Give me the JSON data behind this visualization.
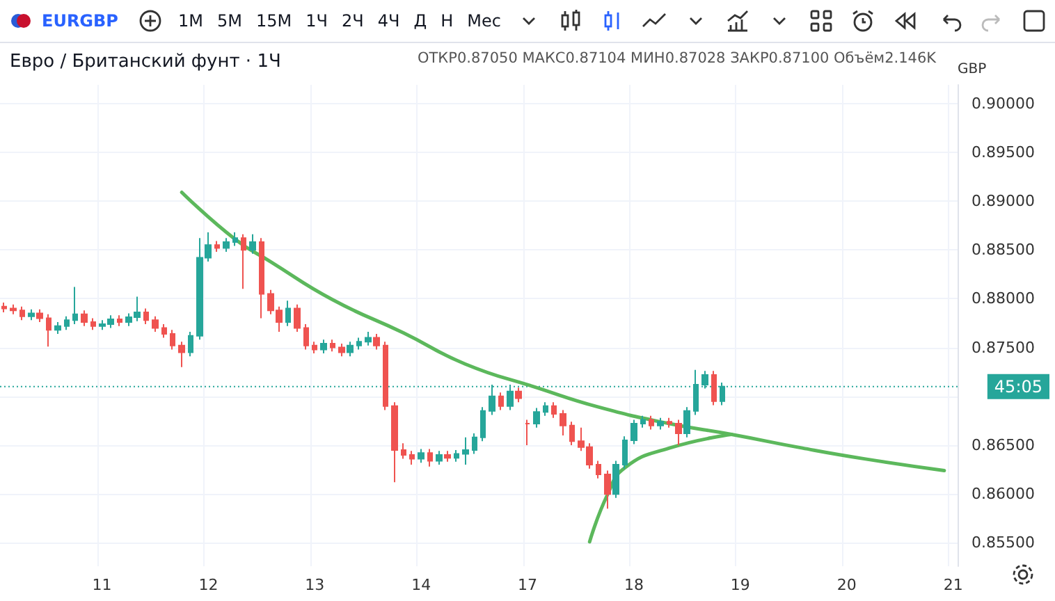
{
  "chart_data": {
    "type": "candlestick",
    "title": "Евро / Британский фунт · 1Ч",
    "ylabel": "GBP",
    "annotations": [
      "EURGBP",
      "1М",
      "5М",
      "15М",
      "1Ч",
      "2Ч",
      "4Ч",
      "Д",
      "Н",
      "Мес",
      "ОТКР0.87050 МАКС0.87104 МИН0.87028 ЗАКР0.87100 Объём2.146K",
      "45:05"
    ],
    "categories": [
      null,
      null,
      null,
      null,
      null,
      null,
      null,
      null,
      null,
      null,
      null,
      "11",
      null,
      null,
      null,
      null,
      null,
      null,
      null,
      null,
      null,
      null,
      null,
      "12",
      null,
      null,
      null,
      null,
      null,
      null,
      null,
      null,
      null,
      null,
      null,
      "13",
      null,
      null,
      null,
      null,
      null,
      null,
      null,
      null,
      null,
      null,
      null,
      "14",
      null,
      null,
      null,
      null,
      null,
      null,
      null,
      null,
      null,
      null,
      null,
      "17",
      null,
      null,
      null,
      null,
      null,
      null,
      null,
      null,
      null,
      null,
      null,
      "18",
      null,
      null,
      null,
      null,
      null,
      null,
      null,
      null,
      null,
      null,
      null,
      "19",
      null,
      null,
      null,
      null,
      null,
      null,
      null,
      null,
      null,
      null,
      null,
      "20",
      null,
      null,
      null,
      null,
      null,
      null,
      null,
      null,
      null,
      null,
      null,
      "21"
    ],
    "ohlc": [
      [
        0.8792,
        0.8796,
        0.8786,
        0.879
      ],
      [
        0.879,
        0.8794,
        0.8784,
        0.8788
      ],
      [
        0.8788,
        0.8792,
        0.8778,
        0.8782
      ],
      [
        0.8782,
        0.8789,
        0.8778,
        0.8785
      ],
      [
        0.8785,
        0.8789,
        0.8776,
        0.878
      ],
      [
        0.878,
        0.8784,
        0.8751,
        0.8768
      ],
      [
        0.8768,
        0.8776,
        0.8764,
        0.8772
      ],
      [
        0.8772,
        0.8782,
        0.8768,
        0.8778
      ],
      [
        0.8778,
        0.8812,
        0.8774,
        0.8784
      ],
      [
        0.8784,
        0.8788,
        0.8772,
        0.8776
      ],
      [
        0.8776,
        0.878,
        0.8768,
        0.8772
      ],
      [
        0.8772,
        0.8778,
        0.8768,
        0.8774
      ],
      [
        0.8774,
        0.8783,
        0.877,
        0.8779
      ],
      [
        0.8779,
        0.8783,
        0.8772,
        0.8776
      ],
      [
        0.8776,
        0.8785,
        0.8772,
        0.8781
      ],
      [
        0.8781,
        0.8802,
        0.8777,
        0.8786
      ],
      [
        0.8786,
        0.879,
        0.8774,
        0.8778
      ],
      [
        0.8778,
        0.8782,
        0.8766,
        0.877
      ],
      [
        0.877,
        0.8774,
        0.876,
        0.8764
      ],
      [
        0.8764,
        0.8768,
        0.8748,
        0.8752
      ],
      [
        0.8752,
        0.8756,
        0.873,
        0.8745
      ],
      [
        0.8745,
        0.8766,
        0.8741,
        0.8762
      ],
      [
        0.8762,
        0.8862,
        0.8758,
        0.8842
      ],
      [
        0.8842,
        0.8868,
        0.8838,
        0.8855
      ],
      [
        0.8855,
        0.8859,
        0.8848,
        0.8852
      ],
      [
        0.8852,
        0.8862,
        0.8848,
        0.8858
      ],
      [
        0.8858,
        0.8868,
        0.8854,
        0.8862
      ],
      [
        0.8862,
        0.8866,
        0.881,
        0.885
      ],
      [
        0.885,
        0.8866,
        0.8846,
        0.8858
      ],
      [
        0.8858,
        0.8862,
        0.878,
        0.8805
      ],
      [
        0.8805,
        0.8809,
        0.8784,
        0.8788
      ],
      [
        0.8788,
        0.8792,
        0.8766,
        0.8776
      ],
      [
        0.8776,
        0.8798,
        0.8772,
        0.879
      ],
      [
        0.879,
        0.8794,
        0.8766,
        0.877
      ],
      [
        0.877,
        0.8774,
        0.8748,
        0.8752
      ],
      [
        0.8752,
        0.8756,
        0.8744,
        0.8748
      ],
      [
        0.8748,
        0.8758,
        0.8744,
        0.8754
      ],
      [
        0.8754,
        0.8758,
        0.8746,
        0.875
      ],
      [
        0.875,
        0.8754,
        0.8741,
        0.8745
      ],
      [
        0.8745,
        0.8756,
        0.8741,
        0.8752
      ],
      [
        0.8752,
        0.876,
        0.8748,
        0.8756
      ],
      [
        0.8756,
        0.8766,
        0.8752,
        0.876
      ],
      [
        0.876,
        0.8764,
        0.8748,
        0.8752
      ],
      [
        0.8752,
        0.8756,
        0.8686,
        0.869
      ],
      [
        0.869,
        0.8694,
        0.8612,
        0.8645
      ],
      [
        0.8645,
        0.8652,
        0.8636,
        0.864
      ],
      [
        0.864,
        0.8644,
        0.863,
        0.8636
      ],
      [
        0.8636,
        0.8646,
        0.8632,
        0.8642
      ],
      [
        0.8642,
        0.8646,
        0.8628,
        0.8634
      ],
      [
        0.8634,
        0.8644,
        0.863,
        0.864
      ],
      [
        0.864,
        0.8644,
        0.8633,
        0.8637
      ],
      [
        0.8637,
        0.8645,
        0.8633,
        0.8641
      ],
      [
        0.8641,
        0.8658,
        0.863,
        0.8645
      ],
      [
        0.8645,
        0.8662,
        0.8641,
        0.8658
      ],
      [
        0.8658,
        0.8689,
        0.8654,
        0.8685
      ],
      [
        0.8685,
        0.8712,
        0.8681,
        0.87
      ],
      [
        0.87,
        0.8704,
        0.8686,
        0.869
      ],
      [
        0.869,
        0.8712,
        0.8686,
        0.8705
      ],
      [
        0.8705,
        0.8709,
        0.8694,
        0.8698
      ],
      [
        0.8672,
        0.8676,
        0.865,
        0.8672
      ],
      [
        0.8672,
        0.8688,
        0.8668,
        0.8684
      ],
      [
        0.8684,
        0.8694,
        0.868,
        0.869
      ],
      [
        0.869,
        0.8694,
        0.8678,
        0.8682
      ],
      [
        0.8682,
        0.8686,
        0.866,
        0.867
      ],
      [
        0.867,
        0.8674,
        0.865,
        0.8654
      ],
      [
        0.8654,
        0.8668,
        0.8644,
        0.8648
      ],
      [
        0.8648,
        0.8652,
        0.8626,
        0.863
      ],
      [
        0.863,
        0.8634,
        0.8616,
        0.862
      ],
      [
        0.862,
        0.8624,
        0.8585,
        0.86
      ],
      [
        0.86,
        0.8634,
        0.8596,
        0.863
      ],
      [
        0.863,
        0.8659,
        0.8626,
        0.8655
      ],
      [
        0.8655,
        0.8676,
        0.8651,
        0.8672
      ],
      [
        0.8672,
        0.868,
        0.8668,
        0.8676
      ],
      [
        0.8676,
        0.868,
        0.8666,
        0.867
      ],
      [
        0.867,
        0.8678,
        0.8666,
        0.8674
      ],
      [
        0.8674,
        0.8678,
        0.8668,
        0.8672
      ],
      [
        0.8672,
        0.8676,
        0.865,
        0.8662
      ],
      [
        0.8662,
        0.8689,
        0.8658,
        0.8685
      ],
      [
        0.8685,
        0.8727,
        0.8681,
        0.8712
      ],
      [
        0.8712,
        0.8726,
        0.8708,
        0.8722
      ],
      [
        0.8722,
        0.8726,
        0.8691,
        0.8695
      ],
      [
        0.8695,
        0.8714,
        0.8691,
        0.871
      ],
      null,
      null,
      null,
      null,
      null,
      null,
      null,
      null,
      null,
      null,
      null,
      null,
      null,
      null,
      null,
      null,
      null,
      null,
      null,
      null,
      null,
      null,
      null,
      null,
      null,
      null
    ],
    "series": [
      {
        "type": "line",
        "color": "#5cb85c",
        "values": [
          null,
          null,
          null,
          null,
          null,
          null,
          null,
          null,
          null,
          null,
          null,
          null,
          null,
          null,
          null,
          null,
          null,
          null,
          null,
          null,
          0.8909,
          null,
          null,
          null,
          null,
          null,
          0.8861,
          null,
          null,
          null,
          0.8838,
          null,
          null,
          null,
          null,
          null,
          null,
          0.8799,
          null,
          null,
          null,
          null,
          null,
          null,
          null,
          0.8765,
          null,
          null,
          null,
          null,
          null,
          null,
          0.8733,
          null,
          null,
          null,
          null,
          null,
          null,
          null,
          0.8709,
          null,
          null,
          null,
          null,
          null,
          null,
          0.8689,
          null,
          null,
          null,
          null,
          null,
          null,
          null,
          0.8672,
          null,
          null,
          null,
          null,
          null,
          null,
          0.8661,
          null,
          null,
          null,
          null,
          null,
          null,
          null,
          0.8647,
          null,
          null,
          null,
          null,
          null,
          null,
          0.8636,
          null,
          null,
          null,
          null,
          null,
          null,
          null,
          null,
          0.8624,
          null
        ]
      },
      {
        "type": "line",
        "color": "#5cb85c",
        "values": [
          null,
          null,
          null,
          null,
          null,
          null,
          null,
          null,
          null,
          null,
          null,
          null,
          null,
          null,
          null,
          null,
          null,
          null,
          null,
          null,
          null,
          null,
          null,
          null,
          null,
          null,
          null,
          null,
          null,
          null,
          null,
          null,
          null,
          null,
          null,
          null,
          null,
          null,
          null,
          null,
          null,
          null,
          null,
          null,
          null,
          null,
          null,
          null,
          null,
          null,
          null,
          null,
          null,
          null,
          null,
          null,
          null,
          null,
          null,
          null,
          null,
          null,
          null,
          null,
          null,
          null,
          0.8551,
          null,
          0.8599,
          null,
          0.8627,
          null,
          null,
          null,
          null,
          0.8647,
          null,
          null,
          null,
          null,
          null,
          null,
          0.8661,
          null,
          null,
          null,
          null,
          null,
          null,
          null,
          null,
          null,
          null,
          null,
          null,
          null,
          null,
          null,
          null,
          null,
          null,
          null,
          null,
          null,
          null,
          null,
          null,
          null
        ]
      }
    ],
    "ylim": [
      0.8526,
      0.9019
    ],
    "yticks": [
      {
        "value": 0.855,
        "label": "0.85500"
      },
      {
        "value": 0.86,
        "label": "0.86000"
      },
      {
        "value": 0.865,
        "label": "0.86500"
      },
      {
        "value": 0.87,
        "label": null
      },
      {
        "value": 0.875,
        "label": "0.87500"
      },
      {
        "value": 0.88,
        "label": "0.88000"
      },
      {
        "value": 0.885,
        "label": "0.88500"
      },
      {
        "value": 0.89,
        "label": "0.89000"
      },
      {
        "value": 0.895,
        "label": "0.89500"
      },
      {
        "value": 0.9,
        "label": "0.90000"
      }
    ],
    "ref_lines": [
      {
        "axis": "y",
        "value": 0.871,
        "color": "#26a69a",
        "line_style": "dotted"
      }
    ],
    "grid": true,
    "line_style": "solid",
    "marker": "none"
  }
}
